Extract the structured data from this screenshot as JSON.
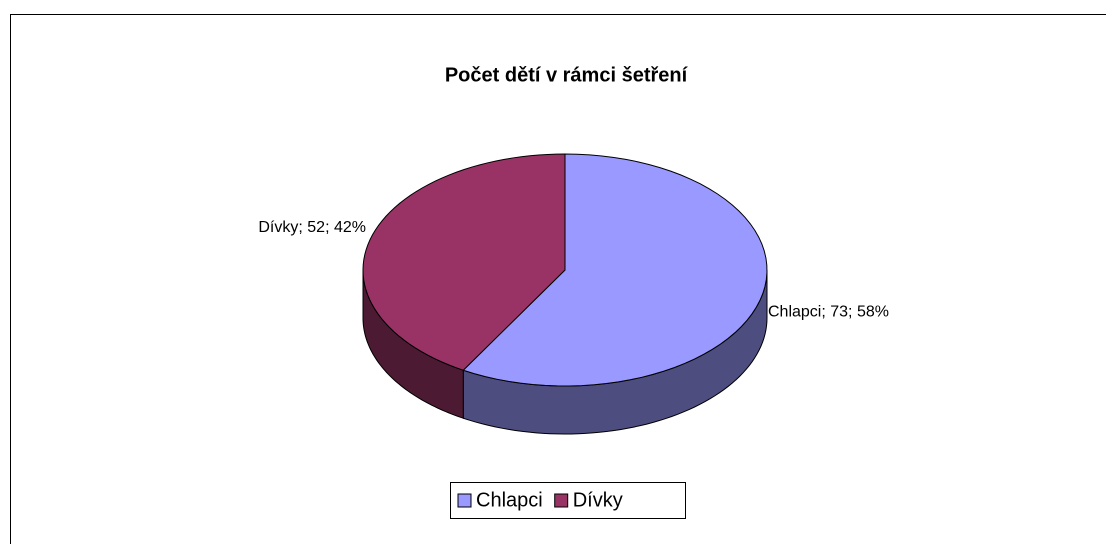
{
  "chart_data": {
    "type": "pie",
    "title": "Počet dětí v rámci šetření",
    "categories": [
      "Chlapci",
      "Dívky"
    ],
    "values": [
      73,
      52
    ],
    "value_labels": [
      "Chlapci; 73; 58%",
      "Dívky; 52; 42%"
    ],
    "colors": [
      "#9999ff",
      "#993366"
    ],
    "side_colors": [
      "#4d4d80",
      "#4d1a33"
    ],
    "legend": "bottom"
  }
}
